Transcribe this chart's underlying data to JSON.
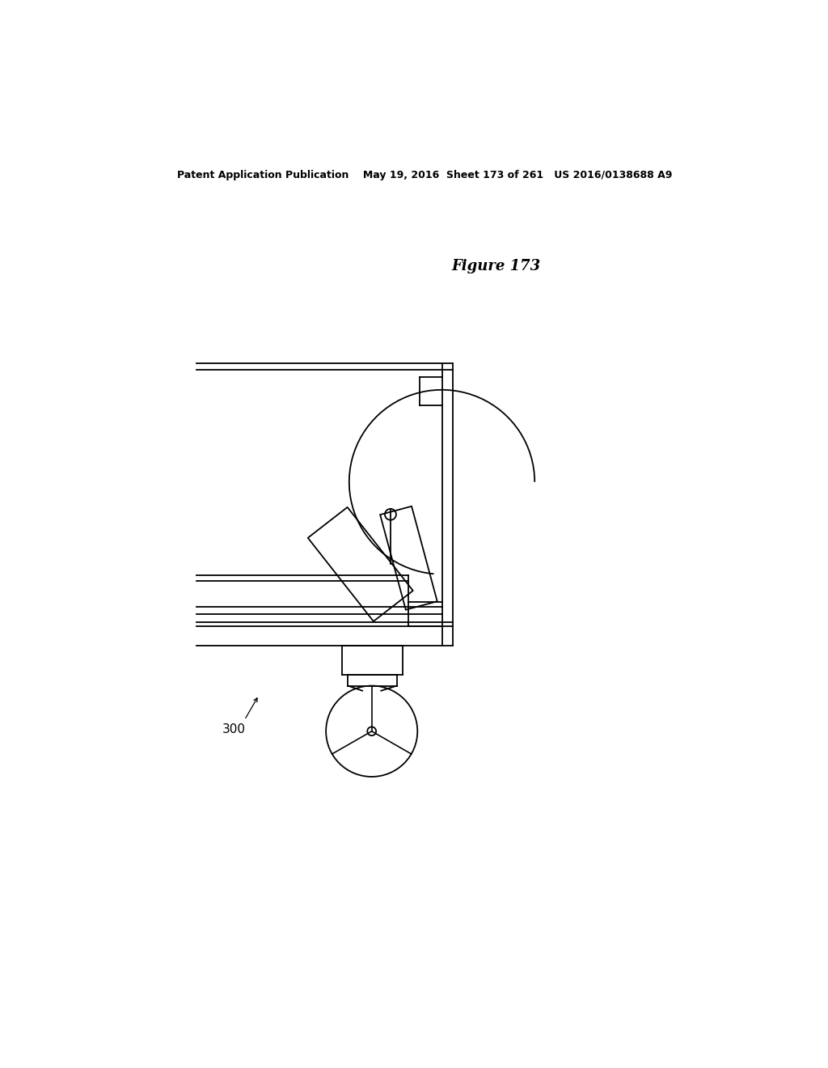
{
  "bg_color": "#ffffff",
  "line_color": "#000000",
  "header_text": "Patent Application Publication    May 19, 2016  Sheet 173 of 261   US 2016/0138688 A9",
  "figure_label": "Figure 173",
  "label_300": "300",
  "fig_width": 10.24,
  "fig_height": 13.2,
  "dpi": 100
}
